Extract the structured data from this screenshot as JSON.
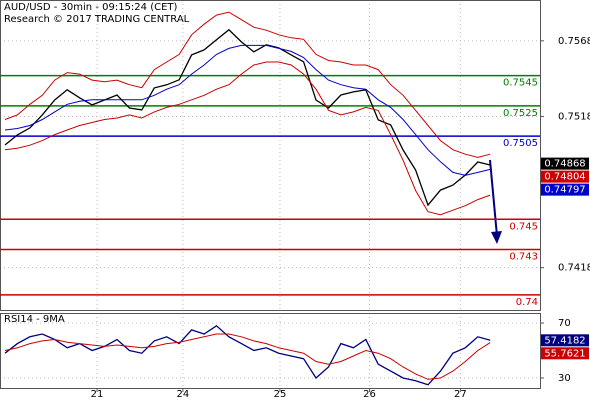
{
  "chart_data": [
    {
      "type": "line",
      "title": "AUD/USD - 30min - 09:15:24 (CET)",
      "subtitle": "Research © 2017 TRADING CENTRAL",
      "x": [
        0,
        1,
        2,
        3,
        4,
        5,
        6,
        7,
        8,
        9,
        10,
        11,
        12,
        13,
        14,
        15,
        16,
        17,
        18,
        19,
        20,
        21,
        22,
        23,
        24,
        25,
        26,
        27,
        28,
        29,
        30,
        31,
        32,
        33,
        34,
        35,
        36,
        37,
        38,
        39
      ],
      "xlim": [
        -0.4,
        43.0
      ],
      "ylim": [
        0.739,
        0.7595
      ],
      "yticks": [
        0.7418,
        0.7518,
        0.7568
      ],
      "grid": true,
      "series": [
        {
          "color": "#000000",
          "values": [
            0.74991,
            0.75058,
            0.75104,
            0.7519,
            0.75289,
            0.75356,
            0.75303,
            0.75256,
            0.75289,
            0.75322,
            0.75236,
            0.75223,
            0.75369,
            0.75389,
            0.75422,
            0.75587,
            0.7562,
            0.75687,
            0.75753,
            0.75673,
            0.75607,
            0.75654,
            0.75634,
            0.75587,
            0.75541,
            0.75289,
            0.75236,
            0.75322,
            0.75342,
            0.75356,
            0.75157,
            0.75124,
            0.74958,
            0.74826,
            0.74594,
            0.74693,
            0.74726,
            0.74793,
            0.74879,
            0.74859
          ]
        },
        {
          "color": "#0000cc",
          "values": [
            0.7509,
            0.751,
            0.7512,
            0.7516,
            0.7521,
            0.7526,
            0.7528,
            0.7529,
            0.7529,
            0.7529,
            0.7529,
            0.7529,
            0.7532,
            0.7536,
            0.7539,
            0.7546,
            0.7552,
            0.7559,
            0.7563,
            0.7565,
            0.7565,
            0.7565,
            0.7563,
            0.7561,
            0.7557,
            0.7549,
            0.7542,
            0.7539,
            0.7537,
            0.7536,
            0.7529,
            0.7524,
            0.7516,
            0.7506,
            0.7496,
            0.7488,
            0.7481,
            0.7479,
            0.7481,
            0.7483
          ]
        },
        {
          "color": "#cc0000",
          "values": [
            0.7516,
            0.7519,
            0.7526,
            0.7532,
            0.7542,
            0.7547,
            0.7546,
            0.7542,
            0.7541,
            0.7542,
            0.7539,
            0.7537,
            0.7549,
            0.7554,
            0.7559,
            0.7572,
            0.7579,
            0.7585,
            0.7587,
            0.7582,
            0.7577,
            0.7575,
            0.7572,
            0.757,
            0.7569,
            0.7559,
            0.7555,
            0.7554,
            0.7552,
            0.7552,
            0.7549,
            0.7539,
            0.7532,
            0.7522,
            0.7512,
            0.7502,
            0.7496,
            0.7493,
            0.7491,
            0.7493
          ]
        },
        {
          "color": "#cc0000",
          "values": [
            0.7496,
            0.7497,
            0.7499,
            0.7502,
            0.7506,
            0.7509,
            0.7512,
            0.7514,
            0.7516,
            0.7517,
            0.7519,
            0.7517,
            0.7521,
            0.7524,
            0.7526,
            0.7529,
            0.7532,
            0.7536,
            0.7539,
            0.7546,
            0.7552,
            0.7554,
            0.7554,
            0.7552,
            0.7546,
            0.7536,
            0.7522,
            0.7519,
            0.7521,
            0.7524,
            0.7522,
            0.7506,
            0.7489,
            0.7469,
            0.7455,
            0.7453,
            0.7456,
            0.7459,
            0.7463,
            0.7466
          ]
        }
      ],
      "levels": [
        {
          "value": 0.7545,
          "color": "#008000"
        },
        {
          "value": 0.7525,
          "color": "#008000"
        },
        {
          "value": 0.7505,
          "color": "#0000cc"
        },
        {
          "value": 0.745,
          "color": "#cc0000"
        },
        {
          "value": 0.743,
          "color": "#cc0000"
        },
        {
          "value": 0.74,
          "color": "#cc0000"
        }
      ],
      "last_labels": [
        {
          "value": 0.74868,
          "color": "#000000"
        },
        {
          "value": 0.74804,
          "color": "#cc0000"
        },
        {
          "value": 0.74797,
          "color": "#0000cc"
        }
      ]
    },
    {
      "type": "line",
      "title": "RSI14 - 9MA",
      "x": [
        0,
        1,
        2,
        3,
        4,
        5,
        6,
        7,
        8,
        9,
        10,
        11,
        12,
        13,
        14,
        15,
        16,
        17,
        18,
        19,
        20,
        21,
        22,
        23,
        24,
        25,
        26,
        27,
        28,
        29,
        30,
        31,
        32,
        33,
        34,
        35,
        36,
        37,
        38,
        39
      ],
      "xlim": [
        -0.4,
        43.0
      ],
      "xticks": [
        {
          "value": 7.4,
          "label": "21"
        },
        {
          "value": 14.3,
          "label": "24"
        },
        {
          "value": 22.1,
          "label": "25"
        },
        {
          "value": 29.3,
          "label": "26"
        },
        {
          "value": 36.6,
          "label": "27"
        }
      ],
      "ylim": [
        22.7,
        77.3
      ],
      "yticks": [
        30,
        70
      ],
      "grid": true,
      "series": [
        {
          "color": "#000080",
          "values": [
            48,
            55,
            60,
            62,
            58,
            52,
            55,
            50,
            53,
            58,
            50,
            48,
            57,
            60,
            55,
            65,
            62,
            68,
            60,
            55,
            50,
            52,
            48,
            46,
            44,
            30,
            38,
            55,
            52,
            58,
            40,
            35,
            30,
            28,
            25,
            35,
            48,
            52,
            60,
            57.42
          ]
        },
        {
          "color": "#cc0000",
          "values": [
            50,
            52,
            55,
            57,
            58,
            56,
            55,
            54,
            53,
            54,
            53,
            52,
            53,
            55,
            56,
            58,
            60,
            62,
            62,
            60,
            57,
            55,
            52,
            50,
            48,
            42,
            40,
            42,
            46,
            50,
            48,
            44,
            38,
            33,
            29,
            30,
            35,
            42,
            50,
            55.76
          ]
        }
      ],
      "last_labels": [
        {
          "value": 57.4182,
          "color": "#000080"
        },
        {
          "value": 55.7621,
          "color": "#cc0000"
        }
      ]
    }
  ]
}
